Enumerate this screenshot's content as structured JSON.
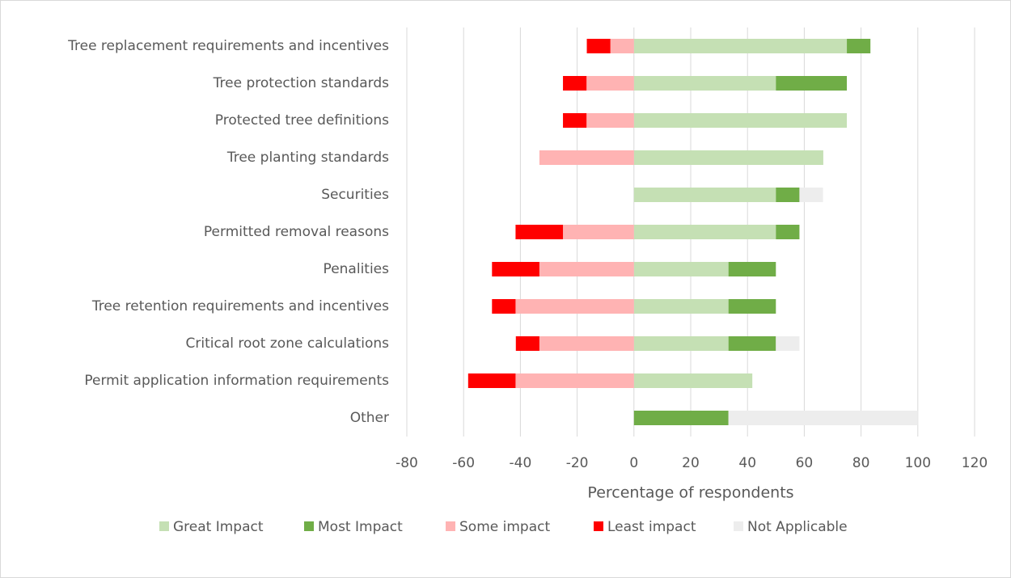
{
  "chart_data": {
    "type": "diverging_bar",
    "xlabel": "Percentage of respondents",
    "categories": [
      "Tree replacement requirements and incentives",
      "Tree protection standards",
      "Protected tree definitions",
      "Tree planting standards",
      "Securities",
      "Permitted removal reasons",
      "Penalities",
      "Tree retention requirements and incentives",
      "Critical root zone calculations",
      "Permit application information requirements",
      "Other"
    ],
    "series": [
      {
        "name": "Great Impact",
        "color": "#c5e0b4",
        "values": [
          75,
          50,
          75,
          66.7,
          50,
          50,
          33.3,
          33.3,
          33.3,
          41.7,
          0
        ]
      },
      {
        "name": "Most Impact",
        "color": "#70ad47",
        "values": [
          8.3,
          25,
          0,
          0,
          8.3,
          8.3,
          16.7,
          16.7,
          16.7,
          0,
          33.3
        ]
      },
      {
        "name": "Some impact",
        "color": "#ffb3b3",
        "values": [
          -8.3,
          -16.7,
          -16.7,
          -33.3,
          0,
          -25,
          -33.3,
          -41.7,
          -33.3,
          -41.7,
          0
        ]
      },
      {
        "name": "Least impact",
        "color": "#ff0000",
        "values": [
          -8.3,
          -8.3,
          -8.3,
          0,
          0,
          -16.7,
          -16.7,
          -8.3,
          -8.3,
          -16.7,
          0
        ]
      },
      {
        "name": "Not Applicable",
        "color": "#ededed",
        "values": [
          0,
          0,
          0,
          0,
          8.3,
          0,
          0,
          0,
          8.3,
          0,
          66.7
        ]
      }
    ],
    "xlim": [
      -80,
      120
    ],
    "xticks": [
      -80,
      -60,
      -40,
      -20,
      0,
      20,
      40,
      60,
      80,
      100,
      120
    ],
    "grid": true,
    "legend": "bottom"
  }
}
